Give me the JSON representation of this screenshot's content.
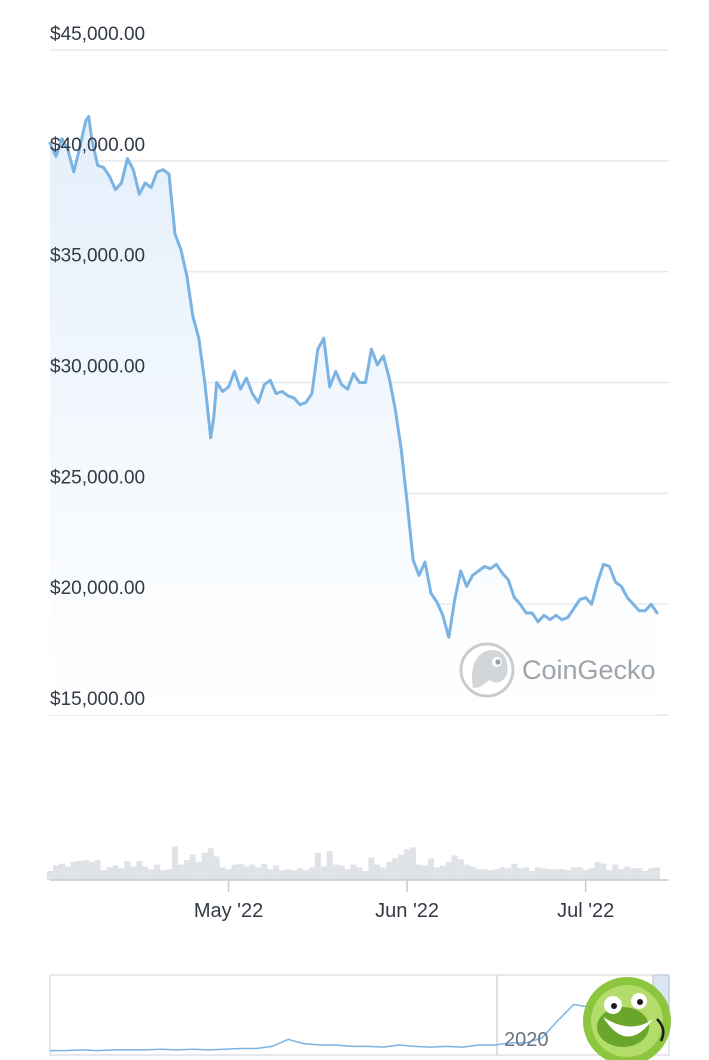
{
  "chart_data": {
    "type": "area",
    "title": "",
    "xlabel": "",
    "ylabel": "",
    "ylim": [
      15000,
      45000
    ],
    "y_ticks": [
      "$45,000.00",
      "$40,000.00",
      "$35,000.00",
      "$30,000.00",
      "$25,000.00",
      "$20,000.00",
      "$15,000.00"
    ],
    "y_tick_values": [
      45000,
      40000,
      35000,
      30000,
      25000,
      20000,
      15000
    ],
    "x_ticks": [
      "May '22",
      "Jun '22",
      "Jul '22"
    ],
    "x_tick_values": [
      30,
      60,
      90
    ],
    "xlim": [
      0,
      104
    ],
    "series": [
      {
        "x": [
          0,
          1,
          2,
          3,
          4,
          5,
          6,
          6.5,
          7,
          8,
          9,
          10,
          11,
          12,
          13,
          14,
          15,
          16,
          17,
          18,
          19,
          20,
          21,
          22,
          23,
          24,
          25,
          26,
          27,
          27.5,
          28,
          29,
          30,
          31,
          32,
          33,
          34,
          35,
          36,
          37,
          38,
          39,
          40,
          41,
          42,
          43,
          44,
          45,
          46,
          47,
          48,
          49,
          50,
          51,
          52,
          53,
          54,
          55,
          56,
          57,
          58,
          59,
          60,
          61,
          62,
          63,
          64,
          65,
          66,
          67,
          68,
          69,
          70,
          71,
          72,
          73,
          74,
          75,
          76,
          77,
          78,
          79,
          80,
          81,
          82,
          83,
          84,
          85,
          86,
          87,
          88,
          89,
          90,
          91,
          92,
          93,
          94,
          95,
          96,
          97,
          98,
          99,
          100,
          101,
          102
        ],
        "values": [
          40800,
          40200,
          41000,
          40500,
          39500,
          40600,
          41800,
          42000,
          41000,
          39800,
          39700,
          39300,
          38700,
          39000,
          40100,
          39600,
          38500,
          39000,
          38800,
          39500,
          39600,
          39400,
          36700,
          36000,
          34800,
          33000,
          32000,
          30000,
          27500,
          28400,
          30000,
          29600,
          29800,
          30500,
          29700,
          30200,
          29500,
          29100,
          29900,
          30100,
          29500,
          29600,
          29400,
          29300,
          29000,
          29100,
          29500,
          31500,
          32000,
          29800,
          30500,
          29900,
          29700,
          30400,
          30000,
          30000,
          31500,
          30800,
          31200,
          30200,
          28800,
          27000,
          24600,
          22000,
          21300,
          21900,
          20500,
          20100,
          19500,
          18500,
          20200,
          21500,
          20800,
          21300,
          21500,
          21700,
          21600,
          21800,
          21400,
          21100,
          20300,
          20000,
          19600,
          19600,
          19200,
          19500,
          19300,
          19500,
          19300,
          19400,
          19800,
          20200,
          20300,
          20000,
          21000,
          21800,
          21700,
          21000,
          20800,
          20300,
          20000,
          19700,
          19700,
          20000,
          19600
        ]
      }
    ],
    "volume_ticks": [
      "May '22",
      "Jun '22",
      "Jul '22"
    ],
    "navigator": {
      "label": "2020",
      "values": [
        0.02,
        0.02,
        0.03,
        0.02,
        0.03,
        0.03,
        0.03,
        0.04,
        0.03,
        0.04,
        0.03,
        0.04,
        0.05,
        0.05,
        0.08,
        0.18,
        0.12,
        0.1,
        0.1,
        0.08,
        0.08,
        0.07,
        0.1,
        0.08,
        0.07,
        0.08,
        0.07,
        0.1,
        0.1,
        0.13,
        0.13,
        0.2,
        0.45,
        0.68,
        0.64,
        0.7,
        0.74,
        0.66,
        0.7,
        0.74
      ]
    }
  },
  "watermark": {
    "text": "CoinGecko",
    "icon": "gecko-logo-icon"
  },
  "colors": {
    "line": "#7bb3e3",
    "fill_top": "#e4effb",
    "fill_bottom": "#ffffff",
    "grid": "#e6e9ee",
    "volume": "#dfe2e6",
    "watermark": "#b9bdc1",
    "mascot_green": "#8cc63f"
  }
}
